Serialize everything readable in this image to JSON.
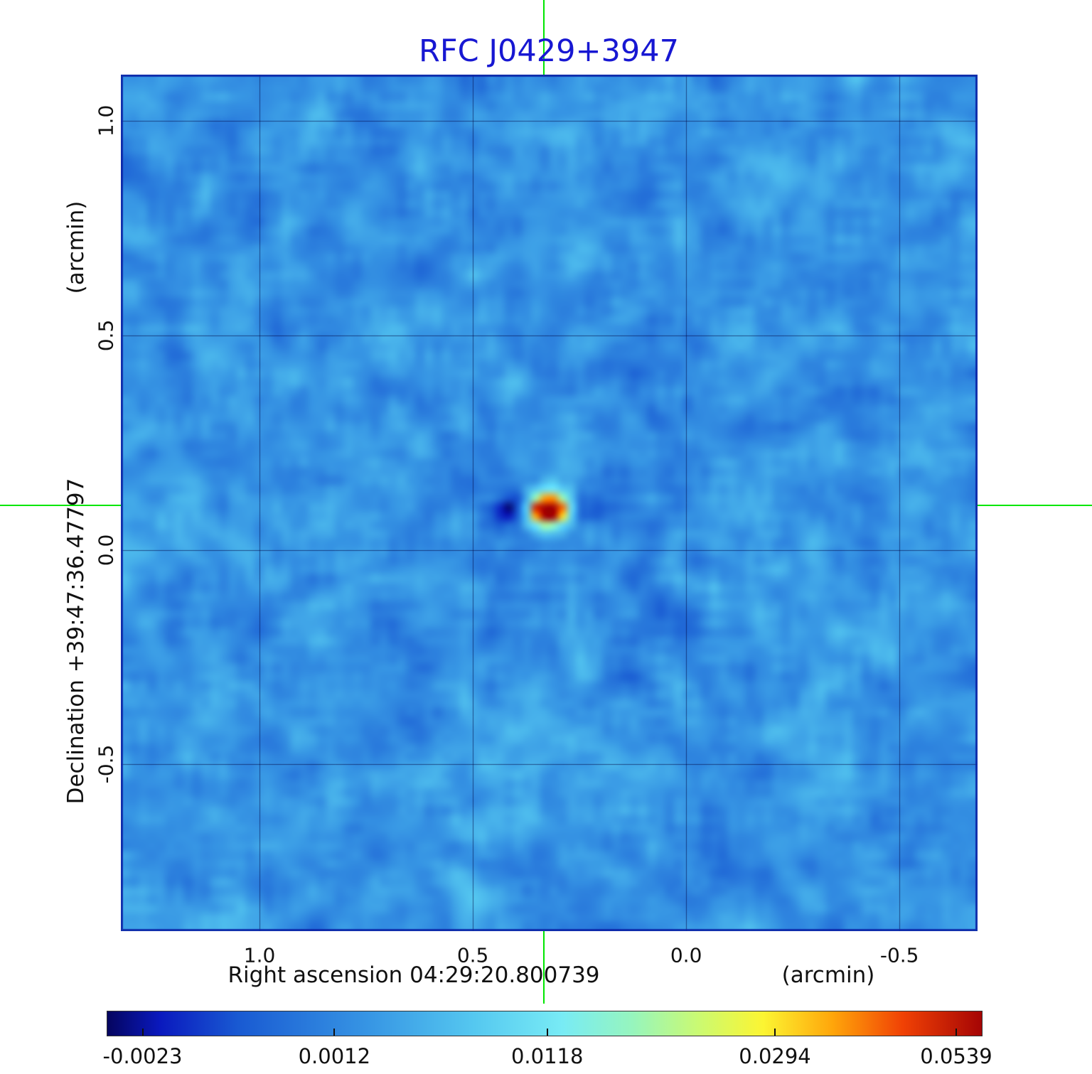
{
  "title": "RFC J0429+3947",
  "colors": {
    "title_text": "#1717d2",
    "crosshair": "#00e600",
    "grid": "rgba(0,0,60,0.55)",
    "frame": "rgba(12,35,165,0.9)",
    "axis_text": "#111111"
  },
  "chart_data": {
    "type": "heatmap",
    "title": "RFC J0429+3947",
    "xlabel": "Right ascension  04:29:20.800739",
    "x_unit": "(arcmin)",
    "ylabel": "Declination  +39:47:36.47797",
    "y_unit": "(arcmin)",
    "x_tick_labels": [
      "1.0",
      "0.5",
      "0.0",
      "-0.5"
    ],
    "x_tick_values": [
      1.0,
      0.5,
      0.0,
      -0.5
    ],
    "y_tick_labels": [
      "1.0",
      "0.5",
      "0.0",
      "-0.5"
    ],
    "y_tick_values": [
      1.0,
      0.5,
      0.0,
      -0.5
    ],
    "xlim": [
      1.325,
      -0.683
    ],
    "ylim": [
      -0.889,
      1.108
    ],
    "grid": true,
    "source": {
      "ra_offset_arcmin": 0.333,
      "dec_offset_arcmin": 0.103,
      "peak_value": 0.0539
    },
    "value_range": [
      -0.0023,
      0.0539
    ],
    "background_rms_level": 0.0012,
    "crosshair_color": "#00e600",
    "colorbar": {
      "tick_labels": [
        "-0.0023",
        "0.0012",
        "0.0118",
        "0.0294",
        "0.0539"
      ],
      "tick_positions": [
        0.041,
        0.26,
        0.503,
        0.763,
        0.97
      ]
    },
    "colormap": [
      [
        0.0,
        [
          5,
          5,
          95
        ]
      ],
      [
        0.06,
        [
          10,
          25,
          190
        ]
      ],
      [
        0.15,
        [
          25,
          90,
          210
        ]
      ],
      [
        0.3,
        [
          55,
          150,
          228
        ]
      ],
      [
        0.42,
        [
          85,
          200,
          240
        ]
      ],
      [
        0.52,
        [
          120,
          235,
          245
        ]
      ],
      [
        0.6,
        [
          150,
          245,
          190
        ]
      ],
      [
        0.68,
        [
          205,
          250,
          110
        ]
      ],
      [
        0.75,
        [
          252,
          245,
          50
        ]
      ],
      [
        0.83,
        [
          255,
          165,
          10
        ]
      ],
      [
        0.91,
        [
          240,
          65,
          5
        ]
      ],
      [
        1.0,
        [
          165,
          5,
          5
        ]
      ]
    ]
  }
}
